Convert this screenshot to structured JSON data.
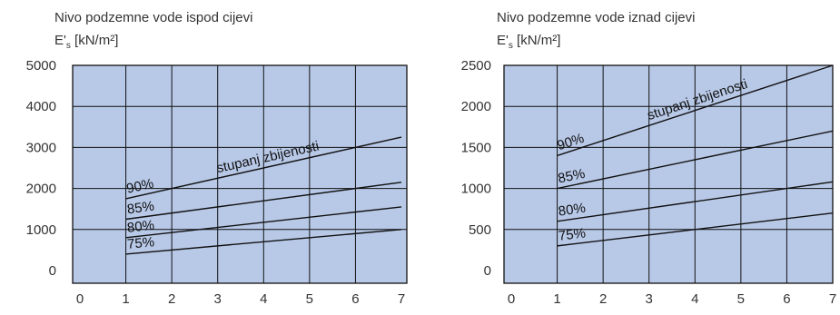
{
  "chart_data": [
    {
      "type": "line",
      "title": "Nivo podzemne vode ispod cijevi",
      "ylabel_main": "E'",
      "ylabel_sub": "s",
      "ylabel_unit": " [kN/m²]",
      "xlabel": "",
      "xlim": [
        0,
        7
      ],
      "ylim": [
        0,
        5000
      ],
      "xticks": [
        "0",
        "1",
        "2",
        "3",
        "4",
        "5",
        "6",
        "7"
      ],
      "yticks": [
        "0",
        "1000",
        "2000",
        "3000",
        "4000",
        "5000"
      ],
      "grid": true,
      "background": "#b8c9e8",
      "line_color": "#111111",
      "series": [
        {
          "name": "90%",
          "x": [
            1,
            7
          ],
          "values": [
            1750,
            3250
          ]
        },
        {
          "name": "85%",
          "x": [
            1,
            7
          ],
          "values": [
            1250,
            2150
          ]
        },
        {
          "name": "80%",
          "x": [
            1,
            7
          ],
          "values": [
            800,
            1550
          ]
        },
        {
          "name": "75%",
          "x": [
            1,
            7
          ],
          "values": [
            400,
            1000
          ]
        }
      ],
      "annotation": "stupanj zbijenosti"
    },
    {
      "type": "line",
      "title": "Nivo podzemne vode iznad cijevi",
      "ylabel_main": "E'",
      "ylabel_sub": "s",
      "ylabel_unit": " [kN/m²]",
      "xlabel": "",
      "xlim": [
        0,
        7
      ],
      "ylim": [
        0,
        2500
      ],
      "xticks": [
        "0",
        "1",
        "2",
        "3",
        "4",
        "5",
        "6",
        "7"
      ],
      "yticks": [
        "0",
        "500",
        "1000",
        "1500",
        "2000",
        "2500"
      ],
      "grid": true,
      "background": "#b8c9e8",
      "line_color": "#111111",
      "series": [
        {
          "name": "90%",
          "x": [
            1,
            7
          ],
          "values": [
            1400,
            2500
          ]
        },
        {
          "name": "85%",
          "x": [
            1,
            7
          ],
          "values": [
            1000,
            1700
          ]
        },
        {
          "name": "80%",
          "x": [
            1,
            7
          ],
          "values": [
            600,
            1080
          ]
        },
        {
          "name": "75%",
          "x": [
            1,
            7
          ],
          "values": [
            300,
            700
          ]
        }
      ],
      "annotation": "stupanj zbijenosti"
    }
  ]
}
